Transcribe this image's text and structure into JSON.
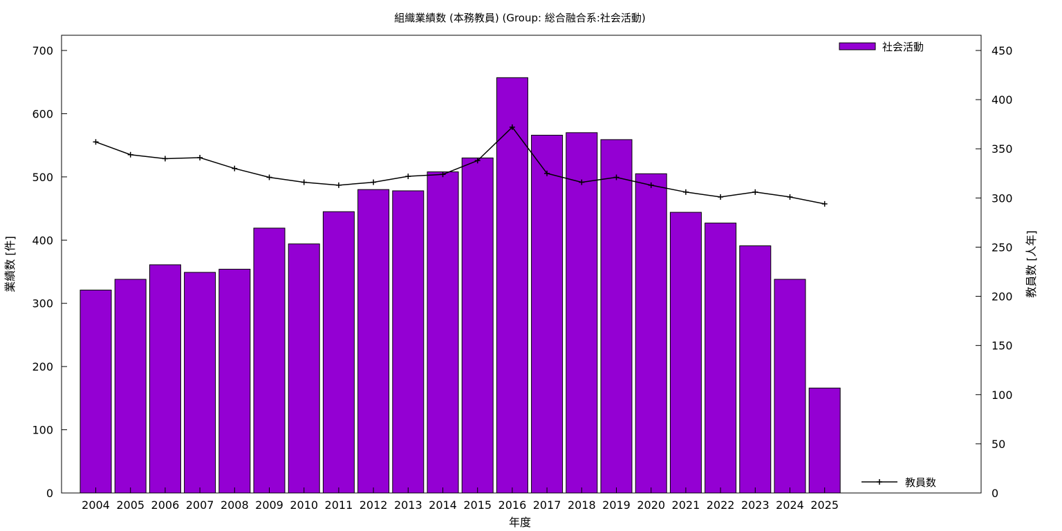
{
  "chart_data": {
    "type": "bar",
    "title": "組織業績数 (本務教員) (Group: 総合融合系:社会活動)",
    "xlabel": "年度",
    "ylabel": "業績数 [件]",
    "y2label": "教員数 [人年]",
    "categories": [
      "2004",
      "2005",
      "2006",
      "2007",
      "2008",
      "2009",
      "2010",
      "2011",
      "2012",
      "2013",
      "2014",
      "2015",
      "2016",
      "2017",
      "2018",
      "2019",
      "2020",
      "2021",
      "2022",
      "2023",
      "2024",
      "2025"
    ],
    "ylim": [
      0,
      700
    ],
    "yticks": [
      0,
      100,
      200,
      300,
      400,
      500,
      600,
      700
    ],
    "y2lim": [
      0,
      450
    ],
    "y2ticks": [
      0,
      50,
      100,
      150,
      200,
      250,
      300,
      350,
      400,
      450
    ],
    "grid": false,
    "series": [
      {
        "name": "社会活動",
        "type": "bar",
        "axis": "left",
        "color": "#9400d3",
        "values": [
          321,
          338,
          361,
          349,
          354,
          419,
          394,
          445,
          480,
          478,
          508,
          530,
          657,
          566,
          570,
          559,
          505,
          444,
          427,
          391,
          338,
          166
        ]
      },
      {
        "name": "教員数",
        "type": "line",
        "axis": "right",
        "color": "#000000",
        "values": [
          357,
          344,
          340,
          341,
          330,
          321,
          316,
          313,
          316,
          322,
          324,
          338,
          372,
          325,
          316,
          321,
          313,
          306,
          301,
          306,
          301,
          294
        ]
      }
    ],
    "legend": {
      "bar_position": "top-right",
      "line_position": "bottom-right"
    }
  }
}
